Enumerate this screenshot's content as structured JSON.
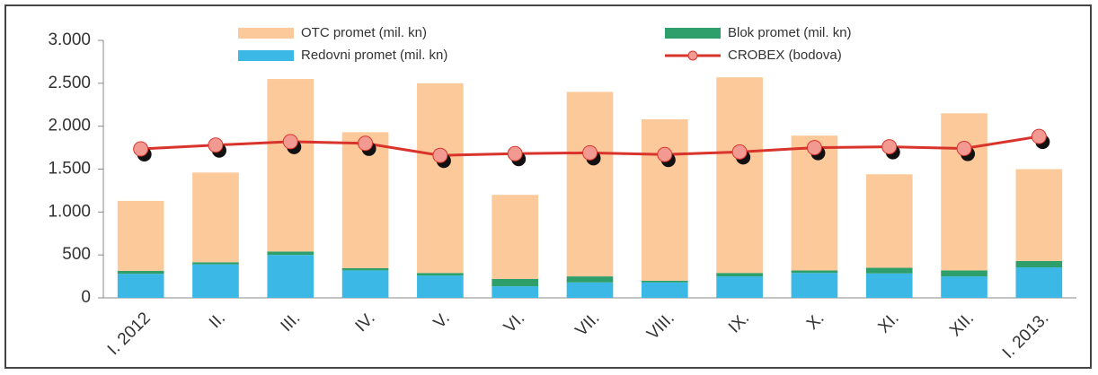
{
  "chart_data": {
    "type": "bar",
    "stacked": true,
    "grid": false,
    "categories": [
      "I. 2012",
      "II.",
      "III.",
      "IV.",
      "V.",
      "VI.",
      "VII.",
      "VIII.",
      "IX.",
      "X.",
      "XI.",
      "XII.",
      "I. 2013."
    ],
    "series": [
      {
        "name": "OTC promet (mil. kn)",
        "color": "#fbc99a",
        "values": [
          815,
          1045,
          2010,
          1585,
          2210,
          980,
          2150,
          1880,
          2280,
          1570,
          1090,
          1830,
          1070
        ]
      },
      {
        "name": "Blok promet (mil. kn)",
        "color": "#2e9e6a",
        "values": [
          35,
          25,
          40,
          25,
          30,
          85,
          70,
          20,
          40,
          30,
          65,
          70,
          75
        ]
      },
      {
        "name": "Redovni promet (mil. kn)",
        "color": "#3cb8e6",
        "values": [
          280,
          390,
          500,
          320,
          260,
          135,
          180,
          180,
          250,
          290,
          285,
          250,
          355
        ]
      },
      {
        "name": "CROBEX (bodova)",
        "type": "line",
        "color": "#d9342b",
        "marker_color": "#f29a92",
        "values": [
          1735,
          1780,
          1820,
          1800,
          1660,
          1680,
          1690,
          1670,
          1700,
          1750,
          1760,
          1740,
          1880
        ]
      }
    ],
    "ylim": [
      0,
      3000
    ],
    "yticks": [
      0,
      500,
      {
        "value": 1000,
        "label": "1.000"
      },
      {
        "value": 1500,
        "label": "1.500"
      },
      {
        "value": 2000,
        "label": "2.000"
      },
      {
        "value": 2500,
        "label": "2.500"
      },
      {
        "value": 3000,
        "label": "3.000"
      }
    ]
  }
}
